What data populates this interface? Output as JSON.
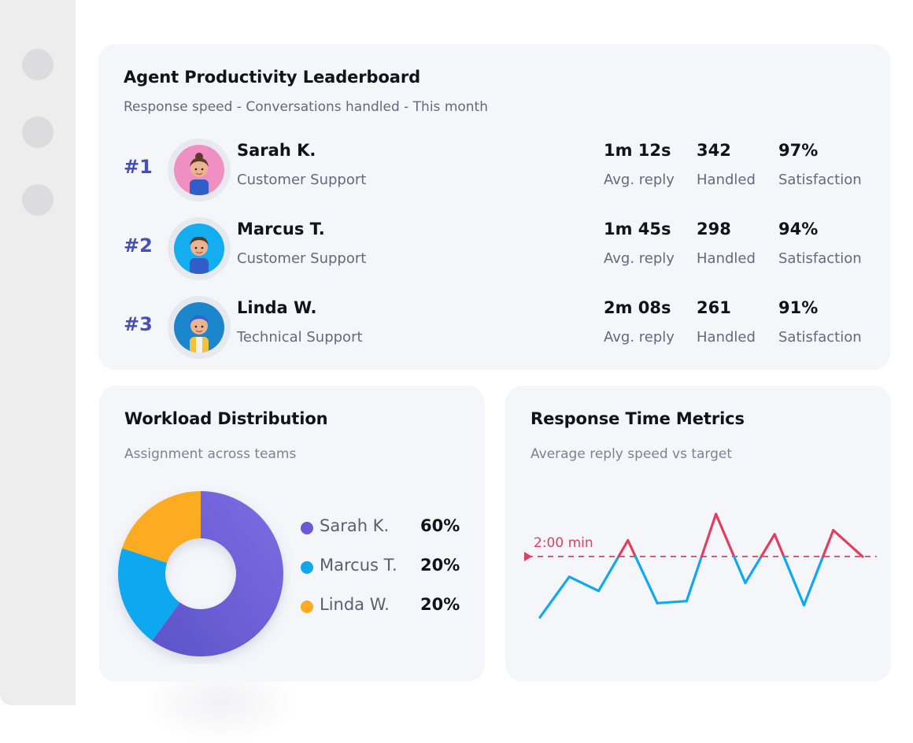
{
  "leaderboard": {
    "title": "Agent Productivity Leaderboard",
    "subtitle": "Response speed - Conversations handled - This month",
    "stat_labels": {
      "reply": "Avg. reply",
      "handled": "Handled",
      "satisfaction": "Satisfaction"
    },
    "agents": [
      {
        "rank": "#1",
        "name": "Sarah K.",
        "team": "Customer Support",
        "avg_reply": "1m 12s",
        "handled": "342",
        "satisfaction": "97%",
        "avatar_bg": "#f08fc2"
      },
      {
        "rank": "#2",
        "name": "Marcus T.",
        "team": "Customer Support",
        "avg_reply": "1m 45s",
        "handled": "298",
        "satisfaction": "94%",
        "avatar_bg": "#14aef0"
      },
      {
        "rank": "#3",
        "name": "Linda W.",
        "team": "Technical Support",
        "avg_reply": "2m 08s",
        "handled": "261",
        "satisfaction": "91%",
        "avatar_bg": "#1b86cc"
      }
    ]
  },
  "workload": {
    "title": "Workload Distribution",
    "subtitle": "Assignment across teams",
    "chart_data": {
      "type": "pie",
      "categories": [
        "Sarah K.",
        "Marcus T.",
        "Linda W."
      ],
      "values": [
        60,
        20,
        20
      ],
      "value_labels": [
        "60%",
        "20%",
        "20%"
      ],
      "colors": [
        "#7a66de",
        "#0ea8f0",
        "#fdac22"
      ],
      "legend": "right"
    }
  },
  "response": {
    "title": "Response Time Metrics",
    "subtitle": "Average reply speed vs target",
    "target_label": "2:00 min",
    "colors": {
      "below_target": "#10a9f1",
      "above_target": "#e0405e",
      "target_line": "#e0405e"
    },
    "chart_data": {
      "type": "line",
      "target": 120,
      "values": [
        90,
        110,
        103,
        128,
        97,
        98,
        141,
        107,
        131,
        96,
        133,
        120
      ]
    }
  }
}
